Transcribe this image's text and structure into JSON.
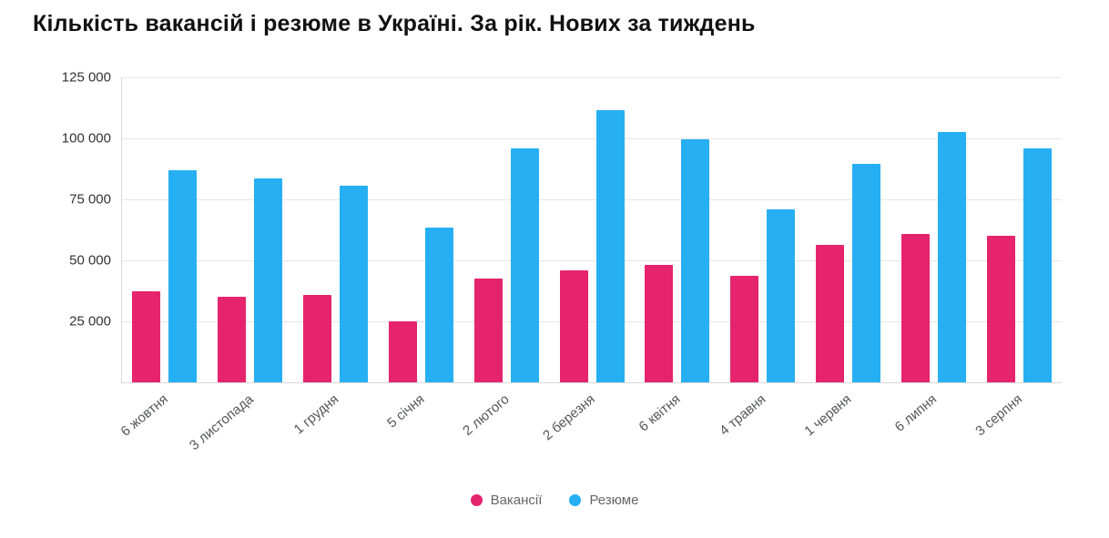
{
  "chart_data": {
    "type": "bar",
    "title": "Кількість вакансій і резюме в Україні. За рік. Нових за тиждень",
    "categories": [
      "6 жовтня",
      "3 листопада",
      "1 грудня",
      "5 січня",
      "2 лютого",
      "2 березня",
      "6 квітня",
      "4 травня",
      "1 червня",
      "6 липня",
      "3 серпня"
    ],
    "series": [
      {
        "name": "Вакансії",
        "color": "#e5246d",
        "values": [
          37500,
          35000,
          36000,
          25000,
          42500,
          46000,
          48000,
          43500,
          56500,
          61000,
          60000
        ]
      },
      {
        "name": "Резюме",
        "color": "#26aff2",
        "values": [
          87000,
          83500,
          80500,
          63500,
          96000,
          111500,
          99500,
          71000,
          89500,
          102500,
          96000
        ]
      }
    ],
    "xlabel": "",
    "ylabel": "",
    "ylim": [
      0,
      125000
    ],
    "yticks": [
      25000,
      50000,
      75000,
      100000,
      125000
    ],
    "ytick_labels": [
      "25 000",
      "50 000",
      "75 000",
      "100 000",
      "125 000"
    ],
    "grid": true,
    "legend_position": "bottom"
  }
}
